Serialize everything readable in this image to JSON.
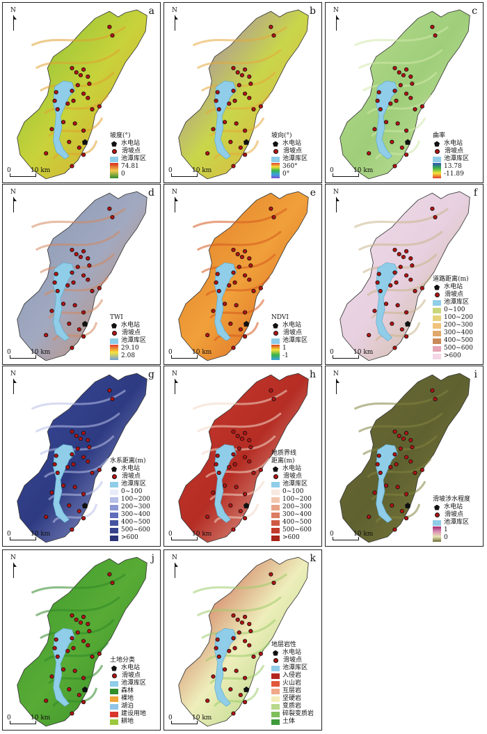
{
  "common": {
    "north": "N",
    "scale_zero": "0",
    "scale_dist": "10 km",
    "station_label": "水电站",
    "landslide_label": "滑坡点",
    "reservoir_label": "池潭库区",
    "reservoir_color": "#8fcde8",
    "landslide_color": "#b31313"
  },
  "panels": [
    {
      "id": "a",
      "title": "坡度(°)",
      "max": "74.81",
      "min": "0",
      "map_colors": [
        "#7fbf3a",
        "#c8d23a",
        "#e0a030"
      ],
      "ramp": [
        "#d62a1a",
        "#f2c94c",
        "#2e8b2e"
      ]
    },
    {
      "id": "b",
      "title": "坡向(°)",
      "max": "360°",
      "min": "0°",
      "map_colors": [
        "#9b6fd0",
        "#c9d64a",
        "#e6a83c"
      ],
      "ramp": [
        "#e33b2e",
        "#f6e23a",
        "#39b24a",
        "#3aa2e0",
        "#7b4fd0"
      ]
    },
    {
      "id": "c",
      "title": "曲率",
      "max": "13.78",
      "min": "-11.89",
      "map_colors": [
        "#b8dd90",
        "#9fce7a",
        "#cfe7a8"
      ],
      "ramp": [
        "#2c4fb3",
        "#38b24a",
        "#f6e23a",
        "#e33b2e"
      ]
    },
    {
      "id": "d",
      "title": "TWI",
      "max": "29.10",
      "min": "2.08",
      "map_colors": [
        "#8796b3",
        "#a1a9c0",
        "#d4875c"
      ],
      "ramp": [
        "#e33b2e",
        "#f6e23a",
        "#6fa0d8"
      ]
    },
    {
      "id": "e",
      "title": "NDVI",
      "max": "1",
      "min": "-1",
      "map_colors": [
        "#e07a2a",
        "#f0a03a",
        "#d65a1e"
      ],
      "ramp": [
        "#d6401e",
        "#f6e23a",
        "#39b24a",
        "#3aa2e0"
      ]
    },
    {
      "id": "f",
      "title": "道路距离(m)",
      "map_colors": [
        "#f0dcea",
        "#e7d0df",
        "#c9b48a"
      ],
      "classes": [
        {
          "label": "0~100",
          "color": "#c9d67a"
        },
        {
          "label": "100~200",
          "color": "#e6d27a"
        },
        {
          "label": "200~300",
          "color": "#f0c27a"
        },
        {
          "label": "300~400",
          "color": "#e0a86a"
        },
        {
          "label": "400~500",
          "color": "#c98a5a"
        },
        {
          "label": "500~600",
          "color": "#e6a6b6"
        },
        {
          "label": ">600",
          "color": "#f4d6e4"
        }
      ]
    },
    {
      "id": "g",
      "title": "水系距离(m)",
      "map_colors": [
        "#3a4a9a",
        "#2e3b82",
        "#b8c0e8"
      ],
      "classes": [
        {
          "label": "0~100",
          "color": "#e8ecf8"
        },
        {
          "label": "100~200",
          "color": "#b6bfe6"
        },
        {
          "label": "200~300",
          "color": "#8a97d2"
        },
        {
          "label": "300~400",
          "color": "#5f6dbb"
        },
        {
          "label": "400~500",
          "color": "#45529f"
        },
        {
          "label": "500~600",
          "color": "#37428d"
        },
        {
          "label": ">600",
          "color": "#2a3378"
        }
      ]
    },
    {
      "id": "h",
      "title": "地质界线",
      "title2": "距离(m)",
      "map_colors": [
        "#c73a2e",
        "#b52d24",
        "#f2d7c6"
      ],
      "classes": [
        {
          "label": "0~100",
          "color": "#f8e9de"
        },
        {
          "label": "100~200",
          "color": "#f2c7ad"
        },
        {
          "label": "200~300",
          "color": "#e8a286"
        },
        {
          "label": "300~400",
          "color": "#dc7e63"
        },
        {
          "label": "400~500",
          "color": "#cf5a44"
        },
        {
          "label": "500~600",
          "color": "#c23a2a"
        },
        {
          "label": ">600",
          "color": "#a82418"
        }
      ]
    },
    {
      "id": "i",
      "title": "滑坡涉水程度",
      "max": "1",
      "min": "0",
      "map_colors": [
        "#6a6a35",
        "#5f6130",
        "#84843f"
      ],
      "ramp": [
        "#a22a6e",
        "#d98fb6",
        "#e7e3b0",
        "#6d6d3a"
      ]
    },
    {
      "id": "j",
      "title": "土地分类",
      "map_colors": [
        "#3d9a2e",
        "#58ab35",
        "#2f8826"
      ],
      "classes": [
        {
          "label": "森林",
          "color": "#2f8f2a"
        },
        {
          "label": "裸地",
          "color": "#f0a43a"
        },
        {
          "label": "湖泊",
          "color": "#8fc4e6"
        },
        {
          "label": "建设用地",
          "color": "#d9362b"
        },
        {
          "label": "耕地",
          "color": "#9ac83a"
        }
      ]
    },
    {
      "id": "k",
      "title": "地层岩性",
      "map_colors": [
        "#c0392b",
        "#eeeebb",
        "#9ccc6a"
      ],
      "classes": [
        {
          "label": "入侵岩",
          "color": "#b3261e"
        },
        {
          "label": "火山岩",
          "color": "#e2563a"
        },
        {
          "label": "互层岩",
          "color": "#f1a888"
        },
        {
          "label": "坚硬岩",
          "color": "#f3ecb8"
        },
        {
          "label": "变质岩",
          "color": "#b8d88a"
        },
        {
          "label": "碎裂变质岩",
          "color": "#7fbf5a"
        },
        {
          "label": "土体",
          "color": "#3f9a3a"
        }
      ]
    }
  ]
}
